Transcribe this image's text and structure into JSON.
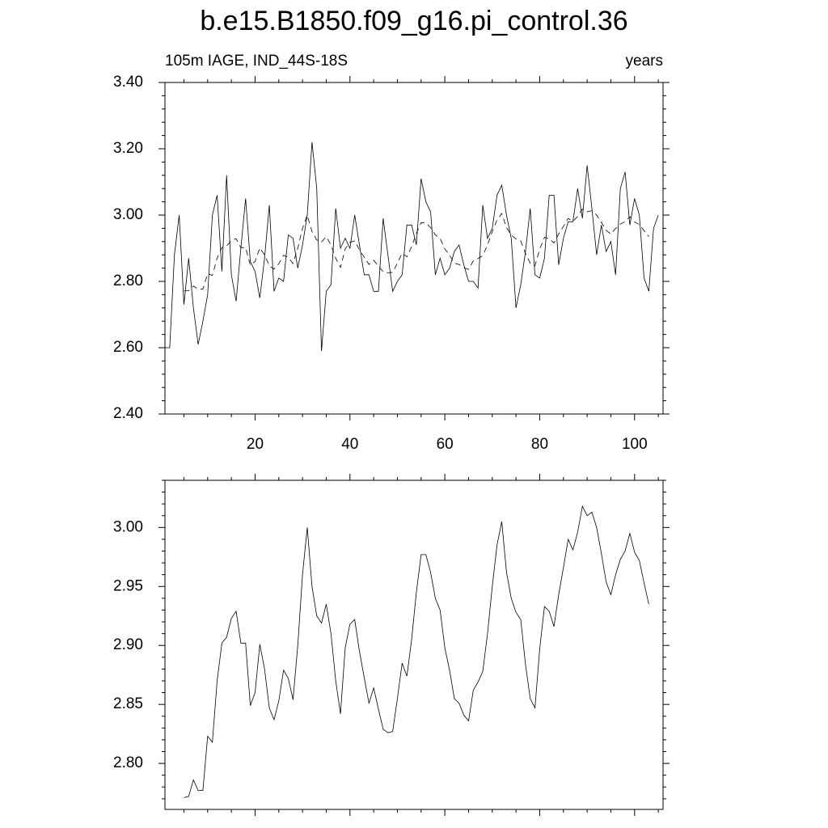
{
  "chart_data": [
    {
      "type": "line",
      "title": "b.e15.B1850.f09_g16.pi_control.36",
      "subtitle": "105m IAGE, IND_44S-18S",
      "annotation": "years",
      "x": [
        1,
        2,
        3,
        4,
        5,
        6,
        7,
        8,
        9,
        10,
        11,
        12,
        13,
        14,
        15,
        16,
        17,
        18,
        19,
        20,
        21,
        22,
        23,
        24,
        25,
        26,
        27,
        28,
        29,
        30,
        31,
        32,
        33,
        34,
        35,
        36,
        37,
        38,
        39,
        40,
        41,
        42,
        43,
        44,
        45,
        46,
        47,
        48,
        49,
        50,
        51,
        52,
        53,
        54,
        55,
        56,
        57,
        58,
        59,
        60,
        61,
        62,
        63,
        64,
        65,
        66,
        67,
        68,
        69,
        70,
        71,
        72,
        73,
        74,
        75,
        76,
        77,
        78,
        79,
        80,
        81,
        82,
        83,
        84,
        85,
        86,
        87,
        88,
        89,
        90,
        91,
        92,
        93,
        94,
        95,
        96,
        97,
        98,
        99,
        100,
        101,
        102,
        103,
        104,
        105
      ],
      "series": [
        {
          "color": "#000000",
          "line_style": "solid",
          "values": [
            2.6,
            2.6,
            2.88,
            3.0,
            2.73,
            2.87,
            2.72,
            2.61,
            2.68,
            2.76,
            3.0,
            3.06,
            2.83,
            3.12,
            2.82,
            2.74,
            2.9,
            3.05,
            2.86,
            2.83,
            2.75,
            2.87,
            3.03,
            2.77,
            2.81,
            2.8,
            2.94,
            2.93,
            2.84,
            2.91,
            3.0,
            3.22,
            3.08,
            2.59,
            2.77,
            2.79,
            3.02,
            2.9,
            2.93,
            2.9,
            3.0,
            2.91,
            2.82,
            2.82,
            2.77,
            2.77,
            2.99,
            2.88,
            2.77,
            2.8,
            2.82,
            2.97,
            2.97,
            2.91,
            3.11,
            3.04,
            3.01,
            2.82,
            2.87,
            2.82,
            2.84,
            2.89,
            2.91,
            2.85,
            2.8,
            2.8,
            2.78,
            3.03,
            2.93,
            2.96,
            3.06,
            3.09,
            3.0,
            2.93,
            2.72,
            2.79,
            2.89,
            3.02,
            2.82,
            2.81,
            2.87,
            3.06,
            3.06,
            2.85,
            2.93,
            2.98,
            2.98,
            3.08,
            2.99,
            3.15,
            3.02,
            2.88,
            2.97,
            2.89,
            2.92,
            2.82,
            3.08,
            3.13,
            2.97,
            3.05,
            3.0,
            2.81,
            2.77,
            2.96,
            3.0
          ]
        },
        {
          "color": "#000000",
          "line_style": "dashed",
          "values": [
            null,
            null,
            null,
            null,
            2.771,
            2.772,
            2.786,
            2.777,
            2.777,
            2.823,
            2.818,
            2.87,
            2.902,
            2.907,
            2.923,
            2.929,
            2.902,
            2.902,
            2.849,
            2.86,
            2.901,
            2.88,
            2.847,
            2.837,
            2.853,
            2.879,
            2.872,
            2.854,
            2.9,
            2.96,
            3.0,
            2.95,
            2.925,
            2.919,
            2.935,
            2.91,
            2.87,
            2.842,
            2.898,
            2.918,
            2.922,
            2.895,
            2.873,
            2.851,
            2.864,
            2.846,
            2.829,
            2.826,
            2.827,
            2.855,
            2.885,
            2.874,
            2.905,
            2.945,
            2.977,
            2.977,
            2.962,
            2.94,
            2.93,
            2.898,
            2.879,
            2.855,
            2.851,
            2.841,
            2.836,
            2.862,
            2.869,
            2.878,
            2.91,
            2.95,
            2.985,
            3.005,
            2.962,
            2.94,
            2.928,
            2.922,
            2.884,
            2.855,
            2.847,
            2.897,
            2.933,
            2.929,
            2.916,
            2.943,
            2.966,
            2.99,
            2.981,
            2.996,
            3.018,
            3.01,
            3.013,
            3.0,
            2.978,
            2.954,
            2.943,
            2.96,
            2.973,
            2.98,
            2.995,
            2.979,
            2.972,
            2.953,
            2.935,
            null,
            null
          ]
        }
      ],
      "xlim": [
        1,
        106
      ],
      "xticks": [
        20,
        40,
        60,
        80,
        100
      ],
      "ylim": [
        2.4,
        3.4
      ],
      "yticks": [
        {
          "value": 2.4,
          "label": "2.40"
        },
        {
          "value": 2.6,
          "label": "2.60"
        },
        {
          "value": 2.8,
          "label": "2.80"
        },
        {
          "value": 3,
          "label": "3.00"
        },
        {
          "value": 3.2,
          "label": "3.20"
        },
        {
          "value": 3.4,
          "label": "3.40"
        }
      ],
      "grid": false
    },
    {
      "type": "line",
      "x": [
        1,
        2,
        3,
        4,
        5,
        6,
        7,
        8,
        9,
        10,
        11,
        12,
        13,
        14,
        15,
        16,
        17,
        18,
        19,
        20,
        21,
        22,
        23,
        24,
        25,
        26,
        27,
        28,
        29,
        30,
        31,
        32,
        33,
        34,
        35,
        36,
        37,
        38,
        39,
        40,
        41,
        42,
        43,
        44,
        45,
        46,
        47,
        48,
        49,
        50,
        51,
        52,
        53,
        54,
        55,
        56,
        57,
        58,
        59,
        60,
        61,
        62,
        63,
        64,
        65,
        66,
        67,
        68,
        69,
        70,
        71,
        72,
        73,
        74,
        75,
        76,
        77,
        78,
        79,
        80,
        81,
        82,
        83,
        84,
        85,
        86,
        87,
        88,
        89,
        90,
        91,
        92,
        93,
        94,
        95,
        96,
        97,
        98,
        99,
        100,
        101,
        102,
        103,
        104,
        105
      ],
      "series": [
        {
          "color": "#000000",
          "line_style": "solid",
          "values": [
            null,
            null,
            null,
            null,
            2.771,
            2.772,
            2.786,
            2.777,
            2.777,
            2.823,
            2.818,
            2.87,
            2.902,
            2.907,
            2.923,
            2.929,
            2.902,
            2.902,
            2.849,
            2.86,
            2.901,
            2.88,
            2.847,
            2.837,
            2.853,
            2.879,
            2.872,
            2.854,
            2.9,
            2.96,
            3.0,
            2.95,
            2.925,
            2.919,
            2.935,
            2.91,
            2.87,
            2.842,
            2.898,
            2.918,
            2.922,
            2.895,
            2.873,
            2.851,
            2.864,
            2.846,
            2.829,
            2.826,
            2.827,
            2.855,
            2.885,
            2.874,
            2.905,
            2.945,
            2.977,
            2.977,
            2.962,
            2.94,
            2.93,
            2.898,
            2.879,
            2.855,
            2.851,
            2.841,
            2.836,
            2.862,
            2.869,
            2.878,
            2.91,
            2.95,
            2.985,
            3.005,
            2.962,
            2.94,
            2.928,
            2.922,
            2.884,
            2.855,
            2.847,
            2.897,
            2.933,
            2.929,
            2.916,
            2.943,
            2.966,
            2.99,
            2.981,
            2.996,
            3.018,
            3.01,
            3.013,
            3.0,
            2.978,
            2.954,
            2.943,
            2.96,
            2.973,
            2.98,
            2.995,
            2.979,
            2.972,
            2.953,
            2.935,
            null,
            null
          ]
        }
      ],
      "xlim": [
        1,
        106
      ],
      "xticks": [
        20,
        40,
        60,
        80,
        100
      ],
      "ylim": [
        2.761,
        3.04
      ],
      "yticks": [
        {
          "value": 2.8,
          "label": "2.80"
        },
        {
          "value": 2.85,
          "label": "2.85"
        },
        {
          "value": 2.9,
          "label": "2.90"
        },
        {
          "value": 2.95,
          "label": "2.95"
        },
        {
          "value": 3,
          "label": "3.00"
        }
      ],
      "grid": false
    }
  ]
}
